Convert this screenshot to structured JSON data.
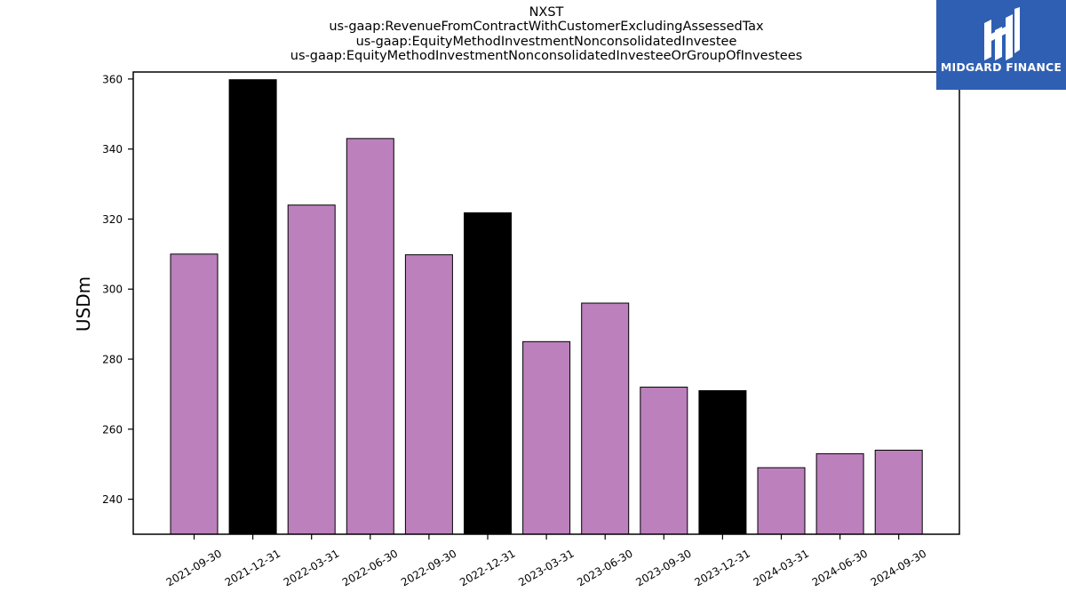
{
  "title_lines": [
    "NXST",
    "us-gaap:RevenueFromContractWithCustomerExcludingAssessedTax",
    "us-gaap:EquityMethodInvestmentNonconsolidatedInvestee",
    "us-gaap:EquityMethodInvestmentNonconsolidatedInvesteeOrGroupOfInvestees"
  ],
  "logo": {
    "text": "MIDGARD FINANCE",
    "background": "#2f5fb3"
  },
  "colors": {
    "quarter": "#bc80bd",
    "year_end": "#000000"
  },
  "chart_data": {
    "type": "bar",
    "ylabel": "USDm",
    "xlabel": "",
    "ylim": [
      230,
      362
    ],
    "yticks": [
      240,
      260,
      280,
      300,
      320,
      340,
      360
    ],
    "categories": [
      "2021-09-30",
      "2021-12-31",
      "2022-03-31",
      "2022-06-30",
      "2022-09-30",
      "2022-12-31",
      "2023-03-31",
      "2023-06-30",
      "2023-09-30",
      "2023-12-31",
      "2024-03-31",
      "2024-06-30",
      "2024-09-30"
    ],
    "values": [
      310,
      359.8,
      324,
      343,
      309.8,
      321.8,
      285,
      296,
      272,
      271,
      249,
      253,
      254
    ],
    "highlight": [
      false,
      true,
      false,
      false,
      false,
      true,
      false,
      false,
      false,
      true,
      false,
      false,
      false
    ],
    "grid": false,
    "legend": "none"
  }
}
